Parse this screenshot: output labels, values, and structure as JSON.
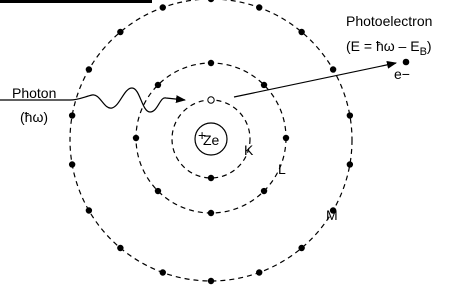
{
  "photoelectron": {
    "title": "Photoelectron",
    "energy": {
      "prefix": "(E = ħω – E",
      "subscript": "B",
      "suffix": ")"
    },
    "symbol": "e−"
  },
  "photon": {
    "title": "Photon",
    "energy": "(ħω)"
  },
  "nucleus": {
    "sign": "+",
    "label": "Ze"
  },
  "shells": {
    "k": "K",
    "l": "L",
    "m": "M"
  }
}
